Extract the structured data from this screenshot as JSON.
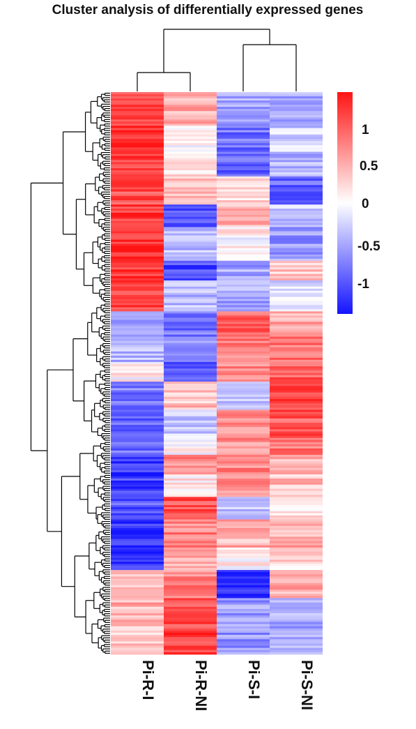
{
  "chart_data": {
    "type": "heatmap",
    "title": "Cluster analysis of differentially expressed genes",
    "columns": [
      "Pi-R-I",
      "Pi-R-NI",
      "Pi-S-I",
      "Pi-S-NI"
    ],
    "color_scale": {
      "min": -1.35,
      "max": 1.35,
      "ticks": [
        "1",
        "0.5",
        "0",
        "-0.5",
        "-1"
      ],
      "low_color": "#1414ff",
      "mid_color": "#ffffff",
      "high_color": "#ff1414"
    },
    "row_dendrogram": "left",
    "column_dendrogram": "top",
    "column_clusters": [
      [
        "Pi-R-I",
        "Pi-R-NI"
      ],
      [
        "Pi-S-I",
        "Pi-S-NI"
      ]
    ],
    "row_blocks": [
      {
        "share": 0.06,
        "values": [
          1.1,
          0.45,
          -0.55,
          -0.45
        ]
      },
      {
        "share": 0.05,
        "values": [
          1.2,
          0.05,
          -0.8,
          -0.3
        ]
      },
      {
        "share": 0.04,
        "values": [
          1.1,
          0.2,
          -0.9,
          -0.4
        ]
      },
      {
        "share": 0.05,
        "values": [
          1.0,
          0.3,
          0.15,
          -0.9
        ]
      },
      {
        "share": 0.04,
        "values": [
          1.1,
          -1.0,
          0.45,
          -0.3
        ]
      },
      {
        "share": 0.06,
        "values": [
          1.2,
          -0.4,
          0.05,
          -0.6
        ]
      },
      {
        "share": 0.035,
        "values": [
          1.2,
          -1.05,
          -0.5,
          0.3
        ]
      },
      {
        "share": 0.055,
        "values": [
          1.1,
          -0.4,
          -0.5,
          -0.2
        ]
      },
      {
        "share": 0.045,
        "values": [
          -0.5,
          -0.8,
          0.9,
          0.5
        ]
      },
      {
        "share": 0.045,
        "values": [
          -0.4,
          -0.7,
          0.75,
          0.8
        ]
      },
      {
        "share": 0.035,
        "values": [
          0.05,
          -0.95,
          0.65,
          0.9
        ]
      },
      {
        "share": 0.05,
        "values": [
          -0.75,
          0.35,
          -0.4,
          1.1
        ]
      },
      {
        "share": 0.05,
        "values": [
          -0.85,
          -0.3,
          0.65,
          0.95
        ]
      },
      {
        "share": 0.03,
        "values": [
          -0.85,
          0.0,
          0.6,
          0.8
        ]
      },
      {
        "share": 0.035,
        "values": [
          -1.15,
          0.7,
          0.7,
          0.5
        ]
      },
      {
        "share": 0.04,
        "values": [
          -1.1,
          0.1,
          0.7,
          0.35
        ]
      },
      {
        "share": 0.04,
        "values": [
          -0.95,
          1.0,
          -0.3,
          0.1
        ]
      },
      {
        "share": 0.05,
        "values": [
          -1.2,
          0.7,
          0.45,
          0.45
        ]
      },
      {
        "share": 0.04,
        "values": [
          -1.2,
          0.5,
          0.1,
          0.2
        ]
      },
      {
        "share": 0.05,
        "values": [
          0.4,
          0.7,
          -1.2,
          0.45
        ]
      },
      {
        "share": 0.05,
        "values": [
          0.45,
          1.05,
          -0.55,
          -0.45
        ]
      },
      {
        "share": 0.05,
        "values": [
          0.35,
          1.1,
          -0.6,
          -0.5
        ]
      }
    ]
  }
}
